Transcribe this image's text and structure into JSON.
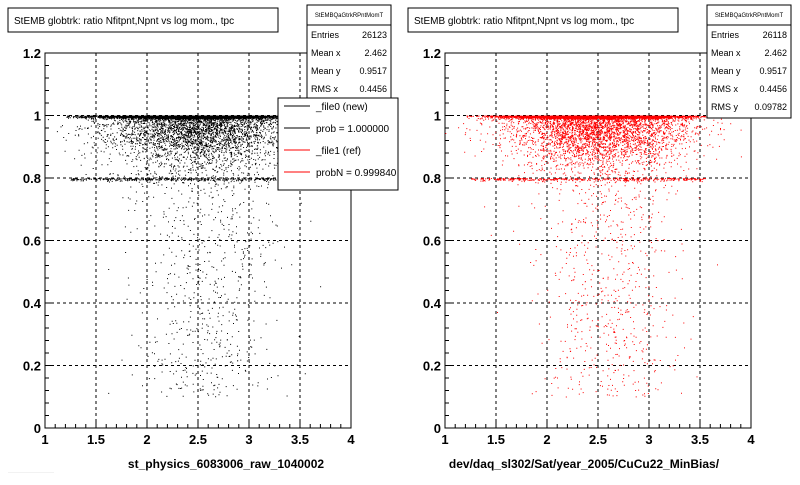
{
  "chart_data": [
    {
      "type": "scatter",
      "title": "StEMB globtrk: ratio Nfitpnt,Npnt vs log mom., tpc",
      "xlabel": "st_physics_6083006_raw_1040002",
      "ylabel": "",
      "xlim": [
        1,
        4
      ],
      "ylim": [
        0,
        1.2
      ],
      "x_ticks": [
        "1",
        "1.5",
        "2",
        "2.5",
        "3",
        "3.5",
        "4"
      ],
      "y_ticks": [
        "0",
        "0.2",
        "0.4",
        "0.6",
        "0.8",
        "1",
        "1.2"
      ],
      "grid": true,
      "marker_color": "#000000",
      "stats": {
        "name": "StEMBQaGtrkRPntMomT",
        "rows": [
          {
            "label": "Entries",
            "value": "26123"
          },
          {
            "label": "Mean x",
            "value": "2.462"
          },
          {
            "label": "Mean y",
            "value": "0.9517"
          },
          {
            "label": "RMS x",
            "value": "0.4456"
          }
        ]
      },
      "legend": {
        "placement": "top-right",
        "entries": [
          {
            "label": "_file0 (new)",
            "color": "#000000"
          },
          {
            "label": "prob = 1.000000",
            "color": "#000000"
          },
          {
            "label": "_file1 (ref)",
            "color": "#ff0000"
          },
          {
            "label": "probN = 0.999840",
            "color": "#ff0000"
          }
        ]
      }
    },
    {
      "type": "scatter",
      "title": "StEMB globtrk: ratio Nfitpnt,Npnt vs log mom., tpc",
      "xlabel": "dev/daq_sl302/Sat/year_2005/CuCu22_MinBias/",
      "ylabel": "",
      "xlim": [
        1,
        4
      ],
      "ylim": [
        0,
        1.2
      ],
      "x_ticks": [
        "1",
        "1.5",
        "2",
        "2.5",
        "3",
        "3.5",
        "4"
      ],
      "y_ticks": [
        "0",
        "0.2",
        "0.4",
        "0.6",
        "0.8",
        "1",
        "1.2"
      ],
      "grid": true,
      "marker_color": "#ff0000",
      "stats": {
        "name": "StEMBQaGtrkRPntMomT",
        "rows": [
          {
            "label": "Entries",
            "value": "26118"
          },
          {
            "label": "Mean x",
            "value": "2.462"
          },
          {
            "label": "Mean y",
            "value": "0.9517"
          },
          {
            "label": "RMS x",
            "value": "0.4456"
          },
          {
            "label": "RMS y",
            "value": "0.09782"
          }
        ]
      }
    }
  ]
}
